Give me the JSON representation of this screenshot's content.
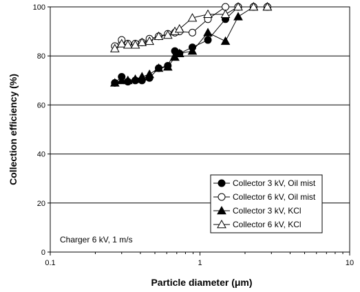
{
  "chart_data": {
    "type": "scatter",
    "title": "",
    "xlabel": "Particle diameter (μm)",
    "ylabel": "Collection efficiency (%)",
    "xscale": "log",
    "xlim": [
      0.1,
      10
    ],
    "ylim": [
      0,
      100
    ],
    "x_ticks": [
      0.1,
      1,
      10
    ],
    "x_tick_labels": [
      "0.1",
      "1",
      "10"
    ],
    "y_ticks": [
      0,
      20,
      40,
      60,
      80,
      100
    ],
    "y_tick_labels": [
      "0",
      "20",
      "40",
      "60",
      "80",
      "100"
    ],
    "grid": "horizontal",
    "legend_position": "bottom-right",
    "annotation": "Charger 6 kV, 1 m/s",
    "series": [
      {
        "name": "Collector 3 kV, Oil mist",
        "marker": "filled-circle",
        "connected": true,
        "x": [
          0.27,
          0.3,
          0.33,
          0.37,
          0.41,
          0.46,
          0.53,
          0.61,
          0.68,
          0.73,
          0.89,
          1.13,
          1.48,
          1.8,
          2.28,
          2.82
        ],
        "y": [
          69,
          71.5,
          69.5,
          70,
          70,
          71,
          75,
          76,
          82,
          81,
          83.5,
          86.5,
          95,
          100,
          100,
          100
        ]
      },
      {
        "name": "Collector 6 kV, Oil mist",
        "marker": "open-circle",
        "connected": true,
        "x": [
          0.27,
          0.3,
          0.33,
          0.37,
          0.41,
          0.46,
          0.53,
          0.61,
          0.68,
          0.73,
          0.89,
          1.13,
          1.48,
          1.8,
          2.28,
          2.82
        ],
        "y": [
          84,
          86.5,
          85,
          85,
          85.5,
          87,
          88,
          89,
          89.5,
          90,
          89.5,
          95,
          100,
          100,
          100,
          100
        ]
      },
      {
        "name": "Collector 3 kV, KCl",
        "marker": "filled-triangle",
        "connected": true,
        "x": [
          0.27,
          0.3,
          0.33,
          0.37,
          0.41,
          0.46,
          0.53,
          0.61,
          0.68,
          0.73,
          0.89,
          1.13,
          1.48,
          1.8,
          2.28,
          2.82
        ],
        "y": [
          69,
          70,
          70,
          70.5,
          71.5,
          72.5,
          75,
          75.5,
          79.5,
          81,
          82,
          89.5,
          86,
          96,
          100,
          100
        ]
      },
      {
        "name": "Collector 6 kV, KCl",
        "marker": "open-triangle",
        "connected": true,
        "x": [
          0.27,
          0.3,
          0.33,
          0.37,
          0.41,
          0.46,
          0.53,
          0.61,
          0.68,
          0.73,
          0.89,
          1.13,
          1.48,
          1.8,
          2.28,
          2.82
        ],
        "y": [
          83,
          85,
          84.5,
          84.5,
          85.5,
          86,
          88,
          88.5,
          90,
          91,
          95.5,
          97,
          97,
          100,
          100,
          100
        ]
      }
    ]
  }
}
